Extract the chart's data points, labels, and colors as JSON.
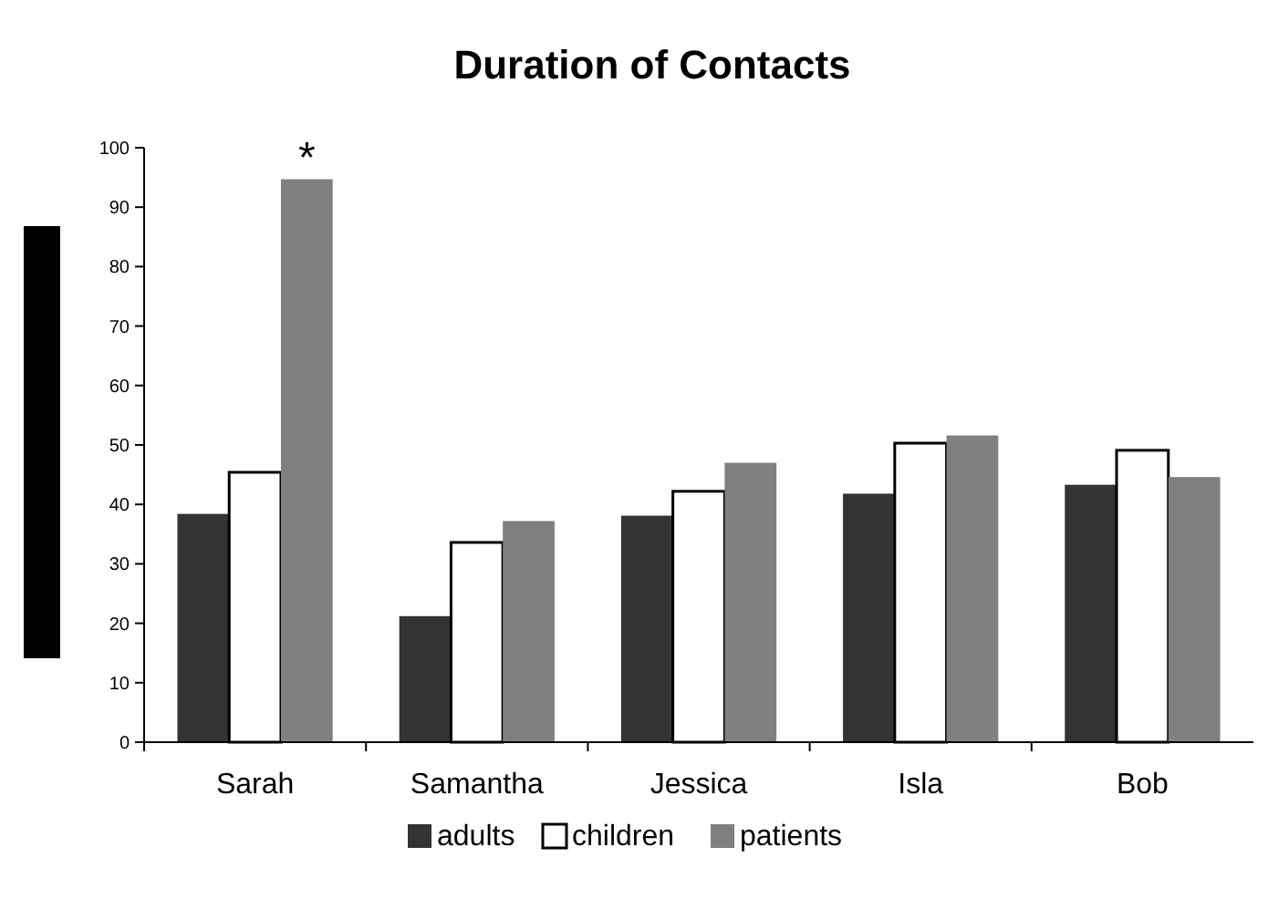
{
  "chart_data": {
    "type": "bar",
    "title": "Duration of Contacts",
    "categories": [
      "Sarah",
      "Samantha",
      "Jessica",
      "Isla",
      "Bob"
    ],
    "series": [
      {
        "name": "adults",
        "color": "#333333",
        "values": [
          38.4,
          21.2,
          38.1,
          41.8,
          43.3
        ]
      },
      {
        "name": "children",
        "color": "#ffffff",
        "values": [
          45.4,
          33.6,
          42.2,
          50.3,
          49.1
        ]
      },
      {
        "name": "patients",
        "color": "#808080",
        "values": [
          94.7,
          37.2,
          47.0,
          51.6,
          44.6
        ]
      }
    ],
    "ylim": [
      0,
      100
    ],
    "yticks": [
      0,
      10,
      20,
      30,
      40,
      50,
      60,
      70,
      80,
      90,
      100
    ],
    "grid": false,
    "legend": "bottom",
    "annotations": [
      "*"
    ]
  }
}
